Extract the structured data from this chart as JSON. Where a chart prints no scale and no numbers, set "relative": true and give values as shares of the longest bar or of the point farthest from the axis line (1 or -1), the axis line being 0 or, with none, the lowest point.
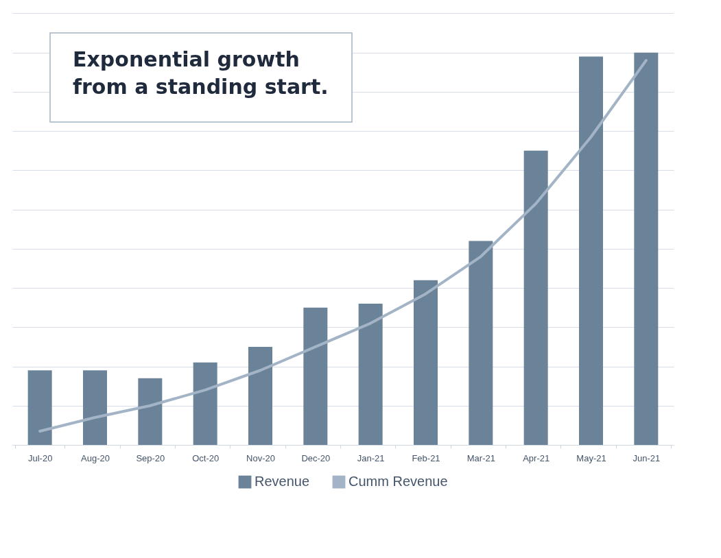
{
  "chart_data": {
    "type": "bar",
    "relative": true,
    "categories": [
      "Jul-20",
      "Aug-20",
      "Sep-20",
      "Oct-20",
      "Nov-20",
      "Dec-20",
      "Jan-21",
      "Feb-21",
      "Mar-21",
      "Apr-21",
      "May-21",
      "Jun-21"
    ],
    "series": [
      {
        "name": "Revenue",
        "color": "#6b8399",
        "values": [
          0.19,
          0.19,
          0.17,
          0.21,
          0.25,
          0.35,
          0.36,
          0.42,
          0.52,
          0.75,
          0.99,
          1
        ]
      },
      {
        "name": "Cumm Revenue",
        "type": "line",
        "color": "#a3b4c6",
        "values": [
          0.035,
          0.07,
          0.1,
          0.14,
          0.19,
          0.25,
          0.31,
          0.385,
          0.48,
          0.615,
          0.785,
          0.98
        ]
      }
    ],
    "grid": true,
    "legend": "bottom",
    "annotations": [
      "Exponential growth from a standing start."
    ]
  }
}
